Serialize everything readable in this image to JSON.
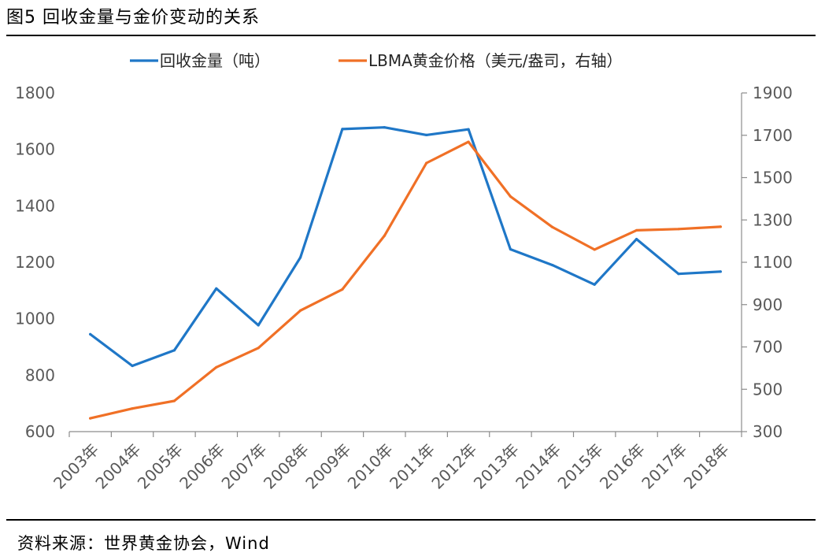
{
  "figure": {
    "title": "图5  回收金量与金价变动的关系",
    "source": "资料来源：世界黄金协会，Wind"
  },
  "chart_data": {
    "type": "line",
    "title": "",
    "categories": [
      "2003年",
      "2004年",
      "2005年",
      "2006年",
      "2007年",
      "2008年",
      "2009年",
      "2010年",
      "2011年",
      "2012年",
      "2013年",
      "2014年",
      "2015年",
      "2016年",
      "2017年",
      "2018年"
    ],
    "series": [
      {
        "name": "回收金量（吨）",
        "axis": "left",
        "color": "#1f77c7",
        "values": [
          945,
          833,
          888,
          1107,
          977,
          1217,
          1672,
          1678,
          1651,
          1671,
          1246,
          1190,
          1121,
          1282,
          1159,
          1167
        ]
      },
      {
        "name": "LBMA黄金价格（美元/盎司，右轴）",
        "axis": "right",
        "color": "#f07026",
        "values": [
          363,
          409,
          445,
          604,
          695,
          872,
          972,
          1225,
          1569,
          1669,
          1411,
          1266,
          1160,
          1251,
          1257,
          1268
        ]
      }
    ],
    "left_axis": {
      "ylim": [
        600,
        1800
      ],
      "ticks": [
        "600",
        "800",
        "1000",
        "1200",
        "1400",
        "1600",
        "1800"
      ]
    },
    "right_axis": {
      "ylim": [
        300,
        1900
      ],
      "ticks": [
        "300",
        "500",
        "700",
        "900",
        "1100",
        "1300",
        "1500",
        "1700",
        "1900"
      ]
    },
    "grid": false,
    "legend_position": "top-center"
  }
}
